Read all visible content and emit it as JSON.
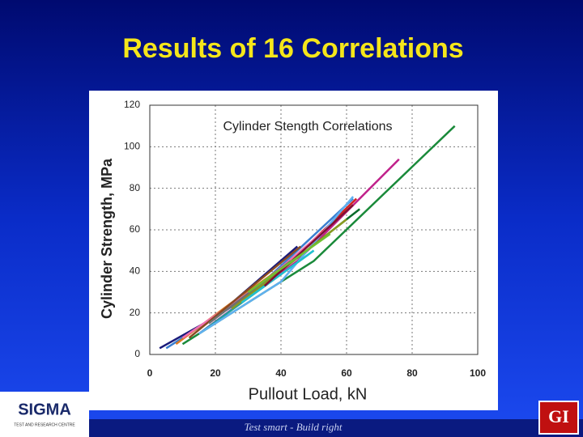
{
  "slide": {
    "title": "Results of 16 Correlations",
    "logo": "SIGMA",
    "logo_sub": "TEST AND RESEARCH CENTRE",
    "tagline": "Test smart - Build right",
    "badge": "GI"
  },
  "chart_data": {
    "type": "line",
    "title": "Cylinder Stength Correlations",
    "xlabel": "Pullout  Load, kN",
    "ylabel": "Cylinder Strength, MPa",
    "xlim": [
      0,
      100
    ],
    "ylim": [
      0,
      120
    ],
    "xticks": [
      0,
      20,
      40,
      60,
      80,
      100
    ],
    "yticks": [
      0,
      20,
      40,
      60,
      80,
      100,
      120
    ],
    "grid": true,
    "series": [
      {
        "color": "#1a8a3a",
        "x": [
          10,
          50,
          93
        ],
        "values": [
          5,
          45,
          110
        ]
      },
      {
        "color": "#c0208a",
        "x": [
          15,
          45,
          76
        ],
        "values": [
          10,
          45,
          94
        ]
      },
      {
        "color": "#3a7fd0",
        "x": [
          5,
          30,
          62
        ],
        "values": [
          3,
          28,
          75
        ]
      },
      {
        "color": "#1a1a7a",
        "x": [
          3,
          20,
          45
        ],
        "values": [
          3,
          18,
          52
        ]
      },
      {
        "color": "#e07a20",
        "x": [
          8,
          25,
          45
        ],
        "values": [
          5,
          25,
          47
        ]
      },
      {
        "color": "#d02020",
        "x": [
          20,
          40,
          63
        ],
        "values": [
          18,
          40,
          75
        ]
      },
      {
        "color": "#0a6a2a",
        "x": [
          30,
          64
        ],
        "values": [
          28,
          70
        ]
      },
      {
        "color": "#20a0a0",
        "x": [
          15,
          50
        ],
        "values": [
          10,
          50
        ]
      },
      {
        "color": "#60b0f0",
        "x": [
          15,
          40,
          62
        ],
        "values": [
          10,
          35,
          76
        ]
      },
      {
        "color": "#f070b0",
        "x": [
          10,
          35,
          55
        ],
        "values": [
          8,
          35,
          62
        ]
      },
      {
        "color": "#8a4a20",
        "x": [
          12,
          46
        ],
        "values": [
          8,
          52
        ]
      },
      {
        "color": "#8a9a20",
        "x": [
          25,
          60
        ],
        "values": [
          22,
          65
        ]
      },
      {
        "color": "#20c0d0",
        "x": [
          28,
          50
        ],
        "values": [
          25,
          50
        ]
      },
      {
        "color": "#707070",
        "x": [
          18,
          43
        ],
        "values": [
          15,
          45
        ]
      },
      {
        "color": "#801030",
        "x": [
          35,
          62
        ],
        "values": [
          33,
          72
        ]
      },
      {
        "color": "#70c030",
        "x": [
          30,
          55
        ],
        "values": [
          30,
          58
        ]
      }
    ]
  }
}
